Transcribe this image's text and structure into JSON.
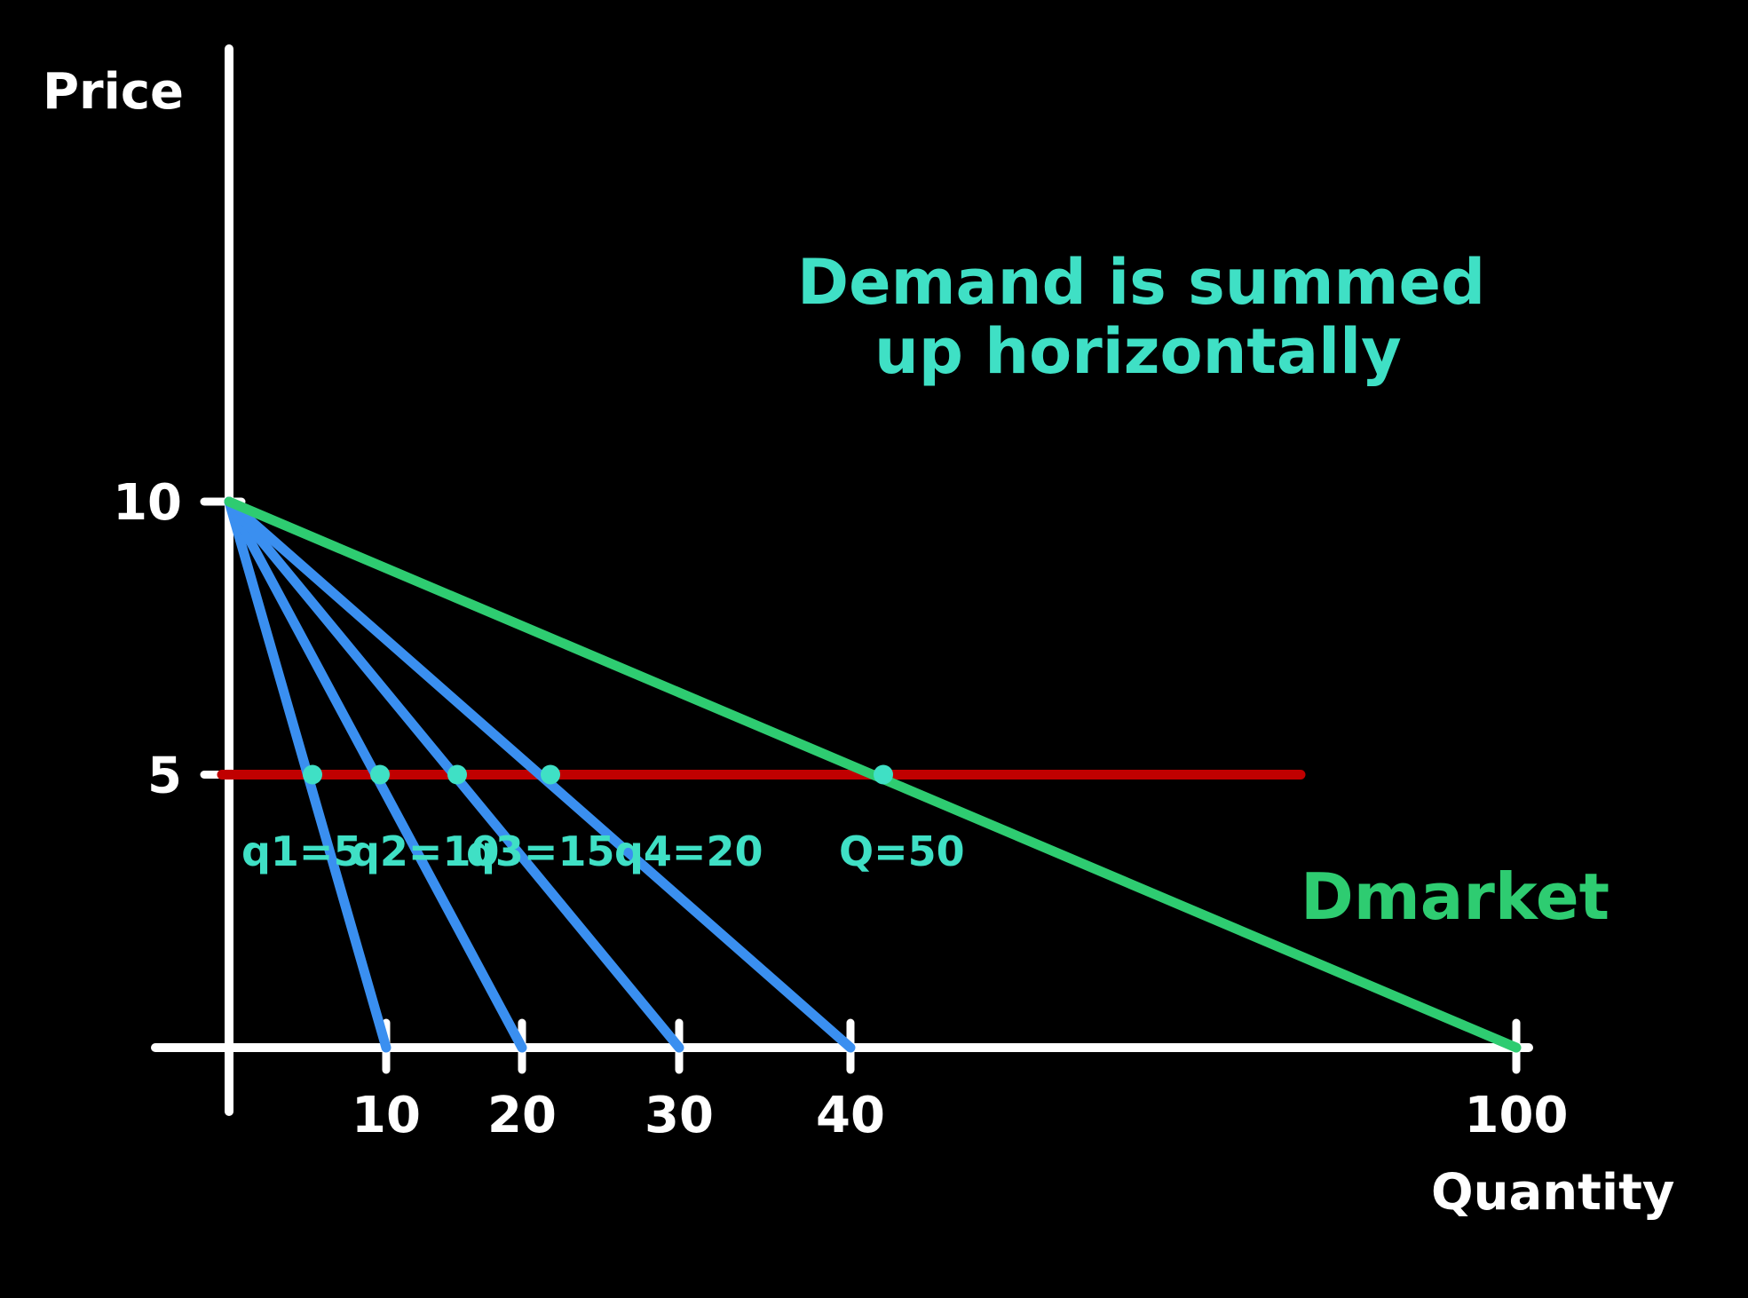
{
  "chart_data": {
    "type": "line",
    "ylabel": "Price",
    "xlabel": "Quantity",
    "x_ticks": [
      "10",
      "20",
      "30",
      "40",
      "100"
    ],
    "y_ticks": [
      "10",
      "5"
    ],
    "xlim": [
      0,
      100
    ],
    "ylim": [
      0,
      10
    ],
    "series": [
      {
        "x": [
          0,
          10
        ],
        "y": [
          10,
          0
        ],
        "color": "#3a8ff0"
      },
      {
        "x": [
          0,
          20
        ],
        "y": [
          10,
          0
        ],
        "color": "#3a8ff0"
      },
      {
        "x": [
          0,
          30
        ],
        "y": [
          10,
          0
        ],
        "color": "#3a8ff0"
      },
      {
        "x": [
          0,
          40
        ],
        "y": [
          10,
          0
        ],
        "color": "#3a8ff0"
      },
      {
        "name": "Dmarket",
        "x": [
          0,
          100
        ],
        "y": [
          10,
          0
        ],
        "color": "#2ecc71"
      }
    ],
    "price_line": {
      "y": 5,
      "x": [
        0,
        80
      ],
      "color": "#c00000"
    },
    "points": [
      {
        "x": 5,
        "y": 5,
        "label": "q1=5"
      },
      {
        "x": 10,
        "y": 5,
        "label": "q2=10"
      },
      {
        "x": 15,
        "y": 5,
        "label": "q3=15"
      },
      {
        "x": 20,
        "y": 5,
        "label": "q4=20"
      },
      {
        "x": 50,
        "y": 5,
        "label": "Q=50"
      }
    ],
    "annotation": [
      "Demand is summed",
      "up horizontally"
    ],
    "market_label": "Dmarket",
    "colors": {
      "axes": "#ffffff",
      "individual_demand": "#3a8ff0",
      "market_demand": "#2ecc71",
      "price_line": "#c00000",
      "annotation": "#3fe0c5",
      "points": "#3fe0c5"
    }
  }
}
